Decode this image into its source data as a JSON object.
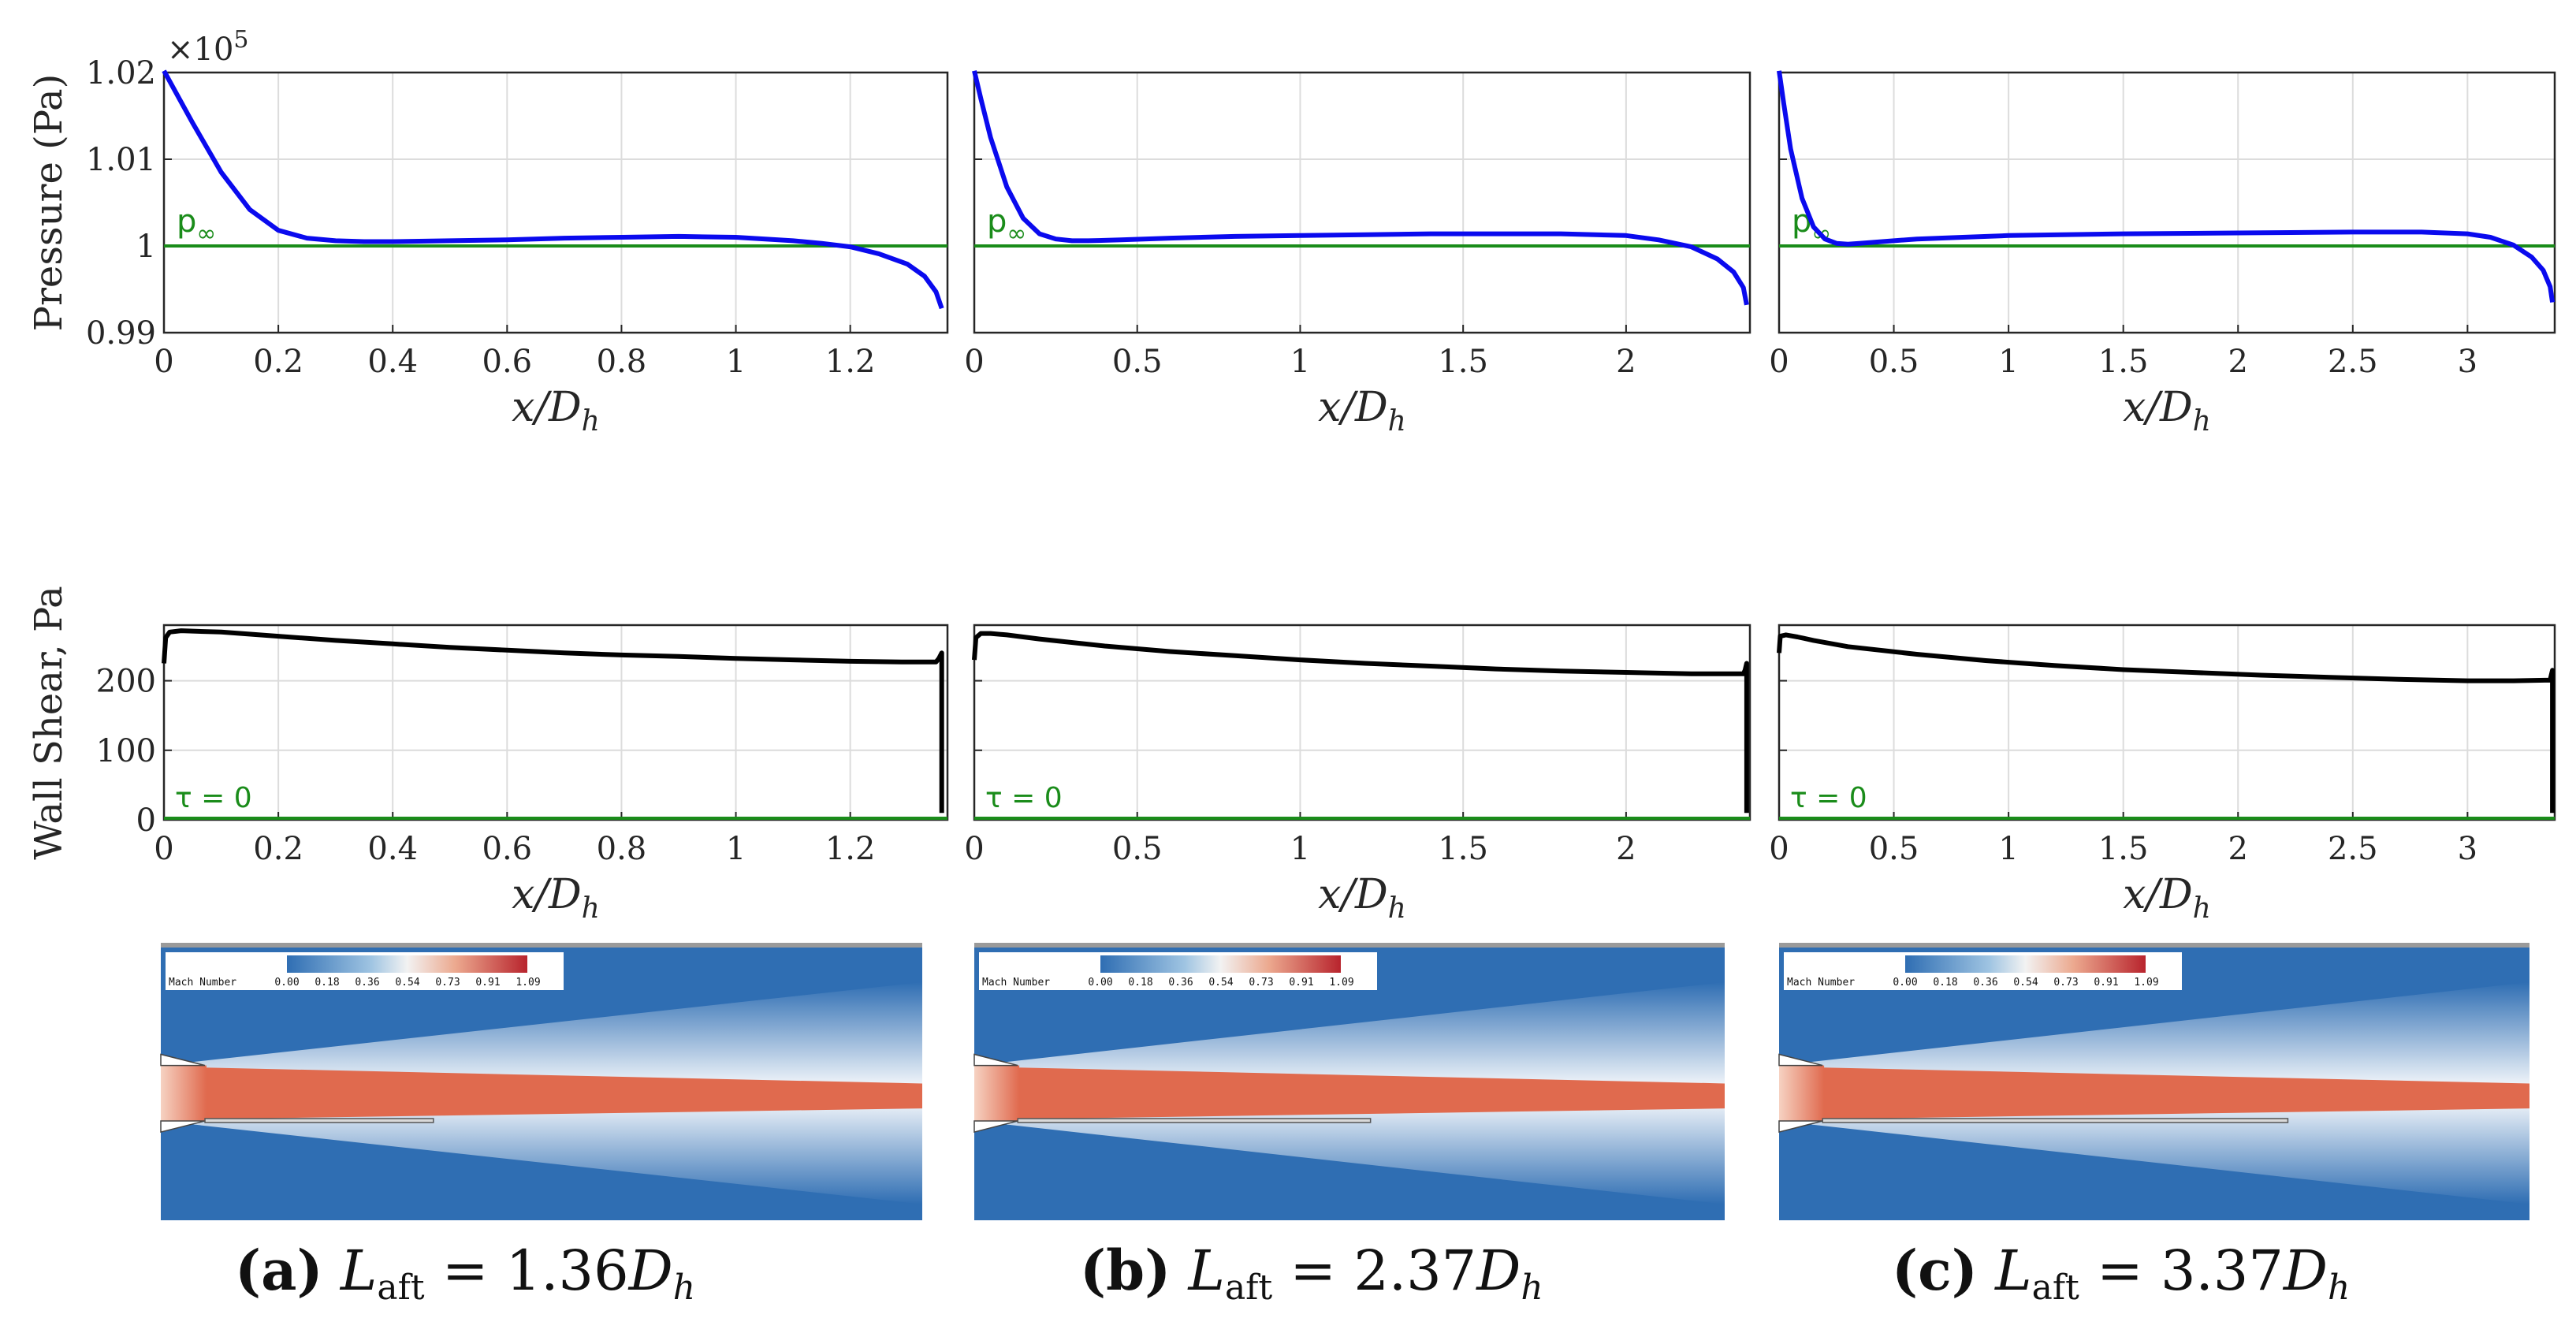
{
  "colors": {
    "pressure_line": "#0a0aee",
    "ambient_line": "#1a8c1a",
    "shear_line": "#000000",
    "zero_line": "#1a8c1a",
    "grid": "#dcdcdc",
    "cfd_background": "#2f6eb3",
    "cfd_jet_core": "#e06a4e",
    "cfd_nozzle_exit": "#f6d2c2"
  },
  "common": {
    "exponent_label": "×10",
    "exponent_power": "5",
    "pressure_ylabel": "Pressure (Pa)",
    "shear_ylabel": "Wall Shear, Pa",
    "xlabel": "x/D",
    "xlabel_sub": "h",
    "p_inf_label": "p",
    "p_inf_sub": "∞",
    "tau_label": "τ = 0",
    "colorbar_title": "Mach Number",
    "colorbar_ticks": [
      "0.00",
      "0.18",
      "0.36",
      "0.54",
      "0.73",
      "0.91",
      "1.09"
    ]
  },
  "chart_data": [
    {
      "id": "a",
      "type": "line",
      "caption": {
        "letter": "(a)",
        "symbol": "L",
        "symbol_sub": "aft",
        "eq": "=",
        "value": "1.36",
        "unit": "D",
        "unit_sub": "h"
      },
      "pressure": {
        "xlim": [
          0,
          1.37
        ],
        "ylim": [
          0.99,
          1.02
        ],
        "xticks": [
          0,
          0.2,
          0.4,
          0.6,
          0.8,
          1,
          1.2
        ],
        "xticklabels": [
          "0",
          "0.2",
          "0.4",
          "0.6",
          "0.8",
          "1",
          "1.2"
        ],
        "yticks": [
          0.99,
          1.0,
          1.01,
          1.02
        ],
        "yticklabels": [
          "0.99",
          "1",
          "1.01",
          "1.02"
        ],
        "p_inf": 1.0,
        "x": [
          0,
          0.02,
          0.05,
          0.1,
          0.15,
          0.2,
          0.25,
          0.3,
          0.35,
          0.4,
          0.5,
          0.6,
          0.7,
          0.8,
          0.9,
          1.0,
          1.1,
          1.15,
          1.2,
          1.25,
          1.3,
          1.33,
          1.35,
          1.36
        ],
        "y": [
          1.0202,
          1.0178,
          1.0142,
          1.0085,
          1.0042,
          1.0018,
          1.0009,
          1.0006,
          1.0005,
          1.0005,
          1.0006,
          1.0007,
          1.0009,
          1.001,
          1.0011,
          1.001,
          1.0006,
          1.0003,
          0.9999,
          0.9991,
          0.9979,
          0.9965,
          0.9947,
          0.9928
        ]
      },
      "shear": {
        "xlim": [
          0,
          1.37
        ],
        "ylim": [
          0,
          280
        ],
        "xticks": [
          0,
          0.2,
          0.4,
          0.6,
          0.8,
          1,
          1.2
        ],
        "xticklabels": [
          "0",
          "0.2",
          "0.4",
          "0.6",
          "0.8",
          "1",
          "1.2"
        ],
        "yticks": [
          0,
          100,
          200
        ],
        "yticklabels": [
          "0",
          "100",
          "200"
        ],
        "x": [
          0,
          0.003,
          0.01,
          0.03,
          0.06,
          0.1,
          0.2,
          0.3,
          0.4,
          0.5,
          0.6,
          0.7,
          0.8,
          0.9,
          1.0,
          1.1,
          1.2,
          1.3,
          1.35,
          1.355,
          1.36,
          1.36
        ],
        "y": [
          225,
          262,
          270,
          272,
          271,
          270,
          264,
          258,
          253,
          248,
          244,
          240,
          237,
          235,
          232,
          230,
          228,
          227,
          227,
          232,
          240,
          10
        ]
      },
      "aft_fraction": 0.3
    },
    {
      "id": "b",
      "type": "line",
      "caption": {
        "letter": "(b)",
        "symbol": "L",
        "symbol_sub": "aft",
        "eq": "=",
        "value": "2.37",
        "unit": "D",
        "unit_sub": "h"
      },
      "pressure": {
        "xlim": [
          0,
          2.38
        ],
        "ylim": [
          0.99,
          1.02
        ],
        "xticks": [
          0,
          0.5,
          1,
          1.5,
          2
        ],
        "xticklabels": [
          "0",
          "0.5",
          "1",
          "1.5",
          "2"
        ],
        "yticks": [
          0.99,
          1.0,
          1.01,
          1.02
        ],
        "yticklabels": [
          "0.99",
          "1",
          "1.01",
          "1.02"
        ],
        "p_inf": 1.0,
        "x": [
          0,
          0.02,
          0.05,
          0.1,
          0.15,
          0.2,
          0.25,
          0.3,
          0.35,
          0.45,
          0.6,
          0.8,
          1.0,
          1.2,
          1.4,
          1.6,
          1.8,
          2.0,
          2.1,
          2.2,
          2.28,
          2.33,
          2.36,
          2.37
        ],
        "y": [
          1.0202,
          1.017,
          1.0125,
          1.0068,
          1.0032,
          1.0014,
          1.0008,
          1.0006,
          1.0006,
          1.0007,
          1.0009,
          1.0011,
          1.0012,
          1.0013,
          1.0014,
          1.0014,
          1.0014,
          1.0012,
          1.0007,
          0.9999,
          0.9985,
          0.997,
          0.9952,
          0.9932
        ]
      },
      "shear": {
        "xlim": [
          0,
          2.38
        ],
        "ylim": [
          0,
          280
        ],
        "xticks": [
          0,
          0.5,
          1,
          1.5,
          2
        ],
        "xticklabels": [
          "0",
          "0.5",
          "1",
          "1.5",
          "2"
        ],
        "yticks": [
          0,
          100,
          200
        ],
        "yticklabels": [
          "0",
          "100",
          "200"
        ],
        "x": [
          0,
          0.005,
          0.02,
          0.05,
          0.1,
          0.2,
          0.4,
          0.6,
          0.8,
          1.0,
          1.2,
          1.4,
          1.6,
          1.8,
          2.0,
          2.2,
          2.3,
          2.36,
          2.365,
          2.37,
          2.37
        ],
        "y": [
          230,
          262,
          268,
          268,
          266,
          260,
          250,
          242,
          236,
          230,
          225,
          221,
          217,
          214,
          212,
          210,
          210,
          210,
          215,
          225,
          10
        ]
      },
      "aft_fraction": 0.47
    },
    {
      "id": "c",
      "type": "line",
      "caption": {
        "letter": "(c)",
        "symbol": "L",
        "symbol_sub": "aft",
        "eq": "=",
        "value": "3.37",
        "unit": "D",
        "unit_sub": "h"
      },
      "pressure": {
        "xlim": [
          0,
          3.38
        ],
        "ylim": [
          0.99,
          1.02
        ],
        "xticks": [
          0,
          0.5,
          1,
          1.5,
          2,
          2.5,
          3
        ],
        "xticklabels": [
          "0",
          "0.5",
          "1",
          "1.5",
          "2",
          "2.5",
          "3"
        ],
        "yticks": [
          0.99,
          1.0,
          1.01,
          1.02
        ],
        "yticklabels": [
          "0.99",
          "1",
          "1.01",
          "1.02"
        ],
        "p_inf": 1.0,
        "x": [
          0,
          0.02,
          0.05,
          0.1,
          0.15,
          0.2,
          0.25,
          0.3,
          0.35,
          0.45,
          0.6,
          0.8,
          1.0,
          1.5,
          2.0,
          2.5,
          2.8,
          3.0,
          3.1,
          3.2,
          3.28,
          3.33,
          3.36,
          3.37
        ],
        "y": [
          1.0202,
          1.0165,
          1.0112,
          1.0055,
          1.0022,
          1.0008,
          1.0003,
          1.0002,
          1.0003,
          1.0005,
          1.0008,
          1.001,
          1.0012,
          1.0014,
          1.0015,
          1.0016,
          1.0016,
          1.0014,
          1.001,
          1.0001,
          0.9987,
          0.9972,
          0.9953,
          0.9935
        ]
      },
      "shear": {
        "xlim": [
          0,
          3.38
        ],
        "ylim": [
          0,
          280
        ],
        "xticks": [
          0,
          0.5,
          1,
          1.5,
          2,
          2.5,
          3
        ],
        "xticklabels": [
          "0",
          "0.5",
          "1",
          "1.5",
          "2",
          "2.5",
          "3"
        ],
        "yticks": [
          0,
          100,
          200
        ],
        "yticklabels": [
          "0",
          "100",
          "200"
        ],
        "x": [
          0,
          0.005,
          0.03,
          0.08,
          0.15,
          0.3,
          0.6,
          0.9,
          1.2,
          1.5,
          1.8,
          2.1,
          2.4,
          2.7,
          3.0,
          3.2,
          3.36,
          3.365,
          3.37,
          3.37
        ],
        "y": [
          240,
          264,
          266,
          263,
          258,
          249,
          238,
          229,
          222,
          216,
          212,
          208,
          205,
          202,
          200,
          200,
          201,
          208,
          215,
          10
        ]
      },
      "aft_fraction": 0.62
    }
  ]
}
